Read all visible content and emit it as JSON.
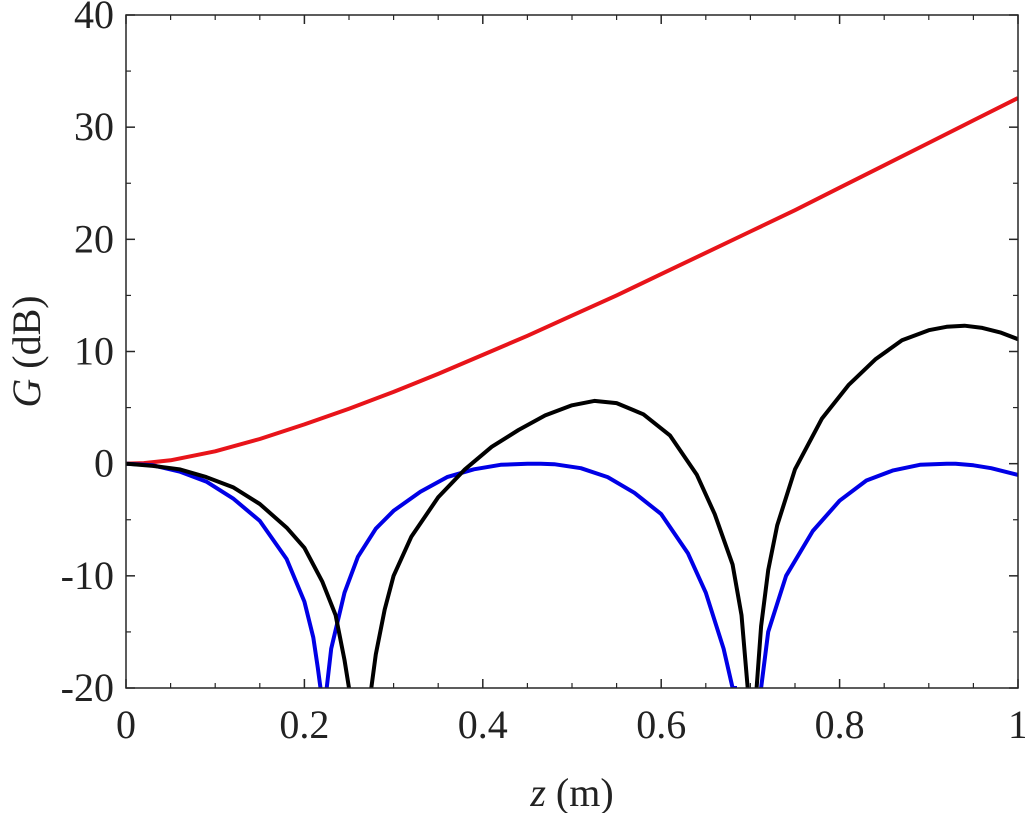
{
  "chart_data": {
    "type": "line",
    "title": "",
    "xlabel": {
      "var": "z",
      "unit": " (m)"
    },
    "ylabel": {
      "var": "G",
      "unit": " (dB)"
    },
    "xlim": [
      0,
      1
    ],
    "ylim": [
      -20,
      40
    ],
    "xticks": [
      0,
      0.2,
      0.4,
      0.6,
      0.8,
      1
    ],
    "xtick_labels": [
      "0",
      "0.2",
      "0.4",
      "0.6",
      "0.8",
      "1"
    ],
    "yticks": [
      -20,
      -10,
      0,
      10,
      20,
      30,
      40
    ],
    "ytick_labels": [
      "-20",
      "-10",
      "0",
      "10",
      "20",
      "30",
      "40"
    ],
    "grid": false,
    "legend": "none",
    "series": [
      {
        "color": "#e8141a",
        "x": [
          0,
          0.02,
          0.05,
          0.1,
          0.15,
          0.2,
          0.25,
          0.3,
          0.35,
          0.4,
          0.45,
          0.5,
          0.55,
          0.6,
          0.65,
          0.7,
          0.75,
          0.8,
          0.85,
          0.9,
          0.95,
          1.0
        ],
        "y": [
          0,
          0.05,
          0.3,
          1.1,
          2.2,
          3.5,
          4.9,
          6.4,
          8.0,
          9.7,
          11.4,
          13.2,
          15.0,
          16.9,
          18.8,
          20.7,
          22.6,
          24.6,
          26.6,
          28.6,
          30.6,
          32.6
        ]
      },
      {
        "color": "#0000e6",
        "x": [
          0,
          0.03,
          0.06,
          0.09,
          0.12,
          0.15,
          0.18,
          0.2,
          0.21,
          0.215,
          0.218,
          null,
          0.225,
          0.23,
          0.245,
          0.26,
          0.28,
          0.3,
          0.33,
          0.36,
          0.39,
          0.42,
          0.45,
          0.465,
          0.48,
          0.51,
          0.54,
          0.57,
          0.6,
          0.63,
          0.65,
          0.67,
          0.68,
          0.685,
          null,
          0.712,
          0.72,
          0.74,
          0.77,
          0.8,
          0.83,
          0.86,
          0.89,
          0.92,
          0.93,
          0.95,
          0.97,
          1.0
        ],
        "y": [
          0,
          -0.15,
          -0.7,
          -1.6,
          -3.1,
          -5.1,
          -8.5,
          -12.3,
          -15.5,
          -18.2,
          -20,
          null,
          -20,
          -16.5,
          -11.5,
          -8.3,
          -5.8,
          -4.2,
          -2.5,
          -1.2,
          -0.5,
          -0.1,
          0,
          0,
          -0.05,
          -0.4,
          -1.2,
          -2.6,
          -4.5,
          -8.0,
          -11.5,
          -16.5,
          -20,
          -20,
          null,
          -20,
          -15,
          -10,
          -6,
          -3.3,
          -1.5,
          -0.6,
          -0.1,
          0,
          0,
          -0.15,
          -0.4,
          -1.0
        ]
      },
      {
        "color": "#000000",
        "x": [
          0,
          0.03,
          0.06,
          0.09,
          0.12,
          0.15,
          0.18,
          0.2,
          0.22,
          0.235,
          0.245,
          0.25,
          null,
          0.275,
          0.28,
          0.29,
          0.3,
          0.32,
          0.35,
          0.38,
          0.41,
          0.44,
          0.47,
          0.5,
          0.525,
          0.55,
          0.58,
          0.61,
          0.64,
          0.66,
          0.68,
          0.69,
          0.697,
          null,
          0.707,
          0.712,
          0.72,
          0.73,
          0.75,
          0.78,
          0.81,
          0.84,
          0.87,
          0.9,
          0.92,
          0.94,
          0.96,
          0.98,
          1.0
        ],
        "y": [
          0,
          -0.2,
          -0.5,
          -1.2,
          -2.1,
          -3.6,
          -5.7,
          -7.5,
          -10.5,
          -13.5,
          -17.5,
          -20,
          null,
          -20,
          -17,
          -13,
          -10,
          -6.5,
          -3,
          -0.5,
          1.5,
          3,
          4.3,
          5.2,
          5.6,
          5.4,
          4.4,
          2.5,
          -1,
          -4.5,
          -9,
          -13.5,
          -20,
          null,
          -20,
          -14.5,
          -9.5,
          -5.5,
          -0.5,
          4,
          7,
          9.3,
          11,
          11.9,
          12.2,
          12.3,
          12.1,
          11.7,
          11.1
        ]
      }
    ]
  }
}
